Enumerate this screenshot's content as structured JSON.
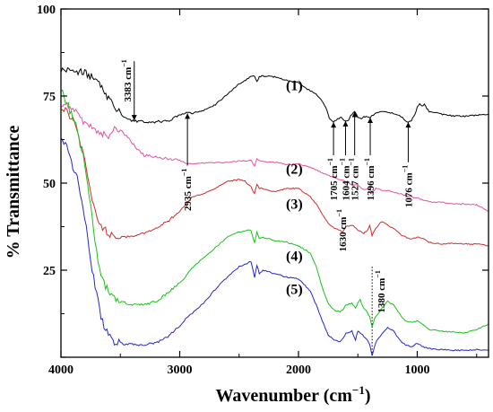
{
  "chart_data": {
    "type": "line",
    "xlabel": "Wavenumber (cm",
    "xlabel_sup": "−1",
    "xlabel_close": ")",
    "ylabel": "% Transmittance",
    "xlim": [
      4000,
      400
    ],
    "ylim": [
      0,
      100
    ],
    "x_ticks": [
      4000,
      3000,
      2000,
      1000
    ],
    "y_ticks": [
      25,
      50,
      75,
      100
    ],
    "y_minor_ticks": [
      0
    ],
    "grid": false,
    "series": [
      {
        "name": "(1)",
        "color": "#000000",
        "x": [
          4000,
          3900,
          3800,
          3700,
          3600,
          3500,
          3450,
          3383,
          3300,
          3200,
          3100,
          3000,
          2935,
          2900,
          2800,
          2700,
          2600,
          2500,
          2400,
          2370,
          2350,
          2330,
          2300,
          2200,
          2100,
          2000,
          1950,
          1900,
          1850,
          1800,
          1760,
          1740,
          1705,
          1670,
          1640,
          1604,
          1580,
          1560,
          1527,
          1500,
          1470,
          1450,
          1420,
          1396,
          1380,
          1350,
          1300,
          1250,
          1200,
          1150,
          1100,
          1076,
          1050,
          1020,
          1000,
          980,
          960,
          940,
          920,
          900,
          850,
          800,
          700,
          600,
          500,
          400
        ],
        "y": [
          82.5,
          82.3,
          81.6,
          79.5,
          74.5,
          70,
          68.5,
          67.8,
          67.6,
          67.6,
          67.8,
          69.5,
          70.3,
          70,
          70.8,
          72.5,
          75.5,
          78.5,
          80.5,
          80.8,
          79,
          80.6,
          80.8,
          80.5,
          79.5,
          79,
          77.5,
          76.5,
          75.5,
          73.5,
          71,
          68.5,
          67.5,
          68.5,
          68.8,
          67.8,
          68,
          69.5,
          70.5,
          69,
          68.5,
          69,
          69,
          68.8,
          69.3,
          70,
          70.5,
          70.3,
          70,
          69.5,
          68,
          67.5,
          68,
          69.5,
          72,
          72.8,
          72,
          72.8,
          71.5,
          70.5,
          70.3,
          69.8,
          69.3,
          69.2,
          69.5,
          69.8
        ],
        "label_pos": [
          2000,
          78
        ]
      },
      {
        "name": "(2)",
        "color": "#e0549f",
        "x": [
          4000,
          3950,
          3900,
          3850,
          3800,
          3750,
          3700,
          3650,
          3600,
          3550,
          3500,
          3450,
          3400,
          3350,
          3300,
          3200,
          3100,
          3000,
          2935,
          2900,
          2800,
          2700,
          2600,
          2500,
          2400,
          2370,
          2350,
          2330,
          2300,
          2200,
          2100,
          2000,
          1900,
          1800,
          1700,
          1650,
          1600,
          1550,
          1500,
          1450,
          1400,
          1380,
          1350,
          1300,
          1250,
          1200,
          1150,
          1100,
          1050,
          1000,
          950,
          900,
          800,
          700,
          600,
          500,
          400
        ],
        "y": [
          73,
          72.8,
          71.5,
          69.5,
          67.5,
          66,
          65,
          63.8,
          63.5,
          65.5,
          65.2,
          63.5,
          61.5,
          59.5,
          58,
          57.5,
          57,
          56.5,
          55.5,
          55.5,
          55.8,
          55.8,
          56,
          56.3,
          56.5,
          55,
          57,
          56.5,
          56.2,
          56,
          55.3,
          55.5,
          54.5,
          53,
          51.5,
          51,
          50.5,
          49.5,
          49.5,
          48,
          48.5,
          47,
          48.5,
          48,
          48,
          47.5,
          47,
          46.5,
          46,
          45.8,
          45,
          44.7,
          44.5,
          44,
          44,
          43.8,
          42
        ],
        "label_pos": [
          2000,
          54
        ]
      },
      {
        "name": "(3)",
        "color": "#d42a2a",
        "x": [
          4000,
          3950,
          3900,
          3850,
          3800,
          3750,
          3700,
          3650,
          3600,
          3550,
          3500,
          3450,
          3400,
          3300,
          3200,
          3100,
          3000,
          2935,
          2900,
          2800,
          2700,
          2600,
          2500,
          2450,
          2400,
          2370,
          2350,
          2330,
          2300,
          2200,
          2100,
          2000,
          1900,
          1850,
          1800,
          1750,
          1700,
          1650,
          1630,
          1600,
          1550,
          1500,
          1450,
          1420,
          1400,
          1380,
          1350,
          1300,
          1250,
          1200,
          1150,
          1100,
          1050,
          1000,
          950,
          900,
          800,
          700,
          600,
          500,
          400
        ],
        "y": [
          71.5,
          70.5,
          68,
          63,
          56,
          47,
          40,
          37,
          35.5,
          35,
          34.5,
          34.5,
          34.8,
          35.5,
          37,
          39,
          42,
          44.5,
          46,
          47,
          48.5,
          50.5,
          51,
          50.5,
          49,
          47,
          49.5,
          48.5,
          48.5,
          47.5,
          48.5,
          48.5,
          46,
          44,
          41,
          38.5,
          37,
          36.5,
          36,
          37.5,
          38,
          36.5,
          35.5,
          36.5,
          38,
          35,
          37,
          39,
          38,
          37,
          35.5,
          34.5,
          34,
          34.5,
          34,
          33,
          32.5,
          32.8,
          32.5,
          32.5,
          32
        ],
        "label_pos": [
          2000,
          44
        ]
      },
      {
        "name": "(4)",
        "color": "#19c21a",
        "x": [
          4000,
          3950,
          3900,
          3850,
          3800,
          3750,
          3700,
          3650,
          3600,
          3550,
          3500,
          3450,
          3400,
          3300,
          3200,
          3100,
          3000,
          2950,
          2935,
          2900,
          2800,
          2700,
          2600,
          2500,
          2400,
          2370,
          2350,
          2330,
          2300,
          2200,
          2100,
          2000,
          1900,
          1850,
          1800,
          1750,
          1700,
          1650,
          1620,
          1600,
          1550,
          1520,
          1500,
          1480,
          1450,
          1420,
          1400,
          1380,
          1360,
          1340,
          1300,
          1250,
          1200,
          1150,
          1100,
          1050,
          1000,
          950,
          900,
          800,
          700,
          600,
          500,
          400
        ],
        "y": [
          77,
          73,
          69,
          64,
          56,
          44,
          30,
          22,
          19,
          17,
          16,
          15.5,
          15.2,
          15,
          16,
          18.5,
          21.5,
          23,
          24,
          25.5,
          28.5,
          31.5,
          34.5,
          36,
          36.5,
          33,
          36,
          34,
          34.5,
          33.5,
          33,
          32,
          30,
          26,
          20,
          15.5,
          13.5,
          13,
          14,
          15,
          15.5,
          14,
          15.5,
          16.5,
          14,
          13,
          11.5,
          9,
          11,
          12,
          14,
          16,
          15,
          12.5,
          10.5,
          10,
          10.5,
          9.5,
          8,
          7.5,
          7.3,
          7,
          8,
          9.5
        ],
        "label_pos": [
          2000,
          29
        ]
      },
      {
        "name": "(5)",
        "color": "#2626c9",
        "x": [
          4000,
          3950,
          3900,
          3850,
          3800,
          3750,
          3700,
          3650,
          3600,
          3550,
          3500,
          3450,
          3400,
          3300,
          3200,
          3100,
          3000,
          2950,
          2935,
          2900,
          2800,
          2700,
          2600,
          2500,
          2400,
          2370,
          2350,
          2330,
          2300,
          2200,
          2100,
          2000,
          1900,
          1850,
          1800,
          1750,
          1700,
          1650,
          1620,
          1600,
          1550,
          1520,
          1500,
          1480,
          1450,
          1420,
          1400,
          1380,
          1360,
          1340,
          1300,
          1250,
          1200,
          1150,
          1100,
          1050,
          1000,
          950,
          900,
          800,
          700,
          600,
          500,
          400
        ],
        "y": [
          64,
          60,
          55,
          50,
          40,
          28,
          18,
          10,
          6,
          4.5,
          4,
          3.8,
          3.7,
          3.5,
          4,
          6,
          9,
          11,
          11.5,
          12.5,
          15.5,
          19.5,
          23,
          26,
          27.5,
          23,
          26.5,
          24,
          25,
          24,
          23,
          22.5,
          19,
          15,
          10.5,
          6.5,
          5,
          4.5,
          5.5,
          7,
          7.5,
          5,
          7.5,
          7,
          6,
          5,
          3.5,
          0.5,
          3,
          5,
          6.5,
          8.5,
          7.5,
          5,
          3.5,
          3,
          4,
          3,
          2.5,
          2.2,
          2,
          2,
          2.2,
          2
        ],
        "label_pos": [
          2000,
          19.5
        ]
      }
    ],
    "annotations": [
      {
        "text": "3383 cm",
        "sup": "−1",
        "x": 3383,
        "y_start": 85,
        "y_end": 68,
        "rotate": true,
        "style": "arrow-down"
      },
      {
        "text": "2935 cm",
        "sup": "−1",
        "x": 2935,
        "y_start": 55,
        "y_end": 70,
        "rotate": true,
        "style": "arrow-up"
      },
      {
        "text": "1705 cm",
        "sup": "−1",
        "x": 1705,
        "y_start": 58,
        "y_end": 67.5,
        "rotate": true,
        "style": "arrow-up"
      },
      {
        "text": "1604 cm",
        "sup": "−1",
        "x": 1604,
        "y_start": 58,
        "y_end": 67.8,
        "rotate": true,
        "style": "arrow-up"
      },
      {
        "text": "1527 cm",
        "sup": "−1",
        "x": 1527,
        "y_start": 58,
        "y_end": 70.5,
        "rotate": true,
        "style": "arrow-up"
      },
      {
        "text": "1396 cm",
        "sup": "−1",
        "x": 1396,
        "y_start": 58,
        "y_end": 68.8,
        "rotate": true,
        "style": "arrow-up"
      },
      {
        "text": "1076 cm",
        "sup": "−1",
        "x": 1076,
        "y_start": 56,
        "y_end": 67.5,
        "rotate": true,
        "style": "arrow-up"
      },
      {
        "text": "1630 cm",
        "sup": "−1",
        "x": 1630,
        "y_start": 42,
        "y_end": 36,
        "rotate": true,
        "style": "label-only"
      },
      {
        "text": "1380 cm",
        "sup": "−1",
        "x": 1380,
        "y_start": 26,
        "y_end": 0.5,
        "rotate": true,
        "style": "dotted"
      }
    ]
  }
}
